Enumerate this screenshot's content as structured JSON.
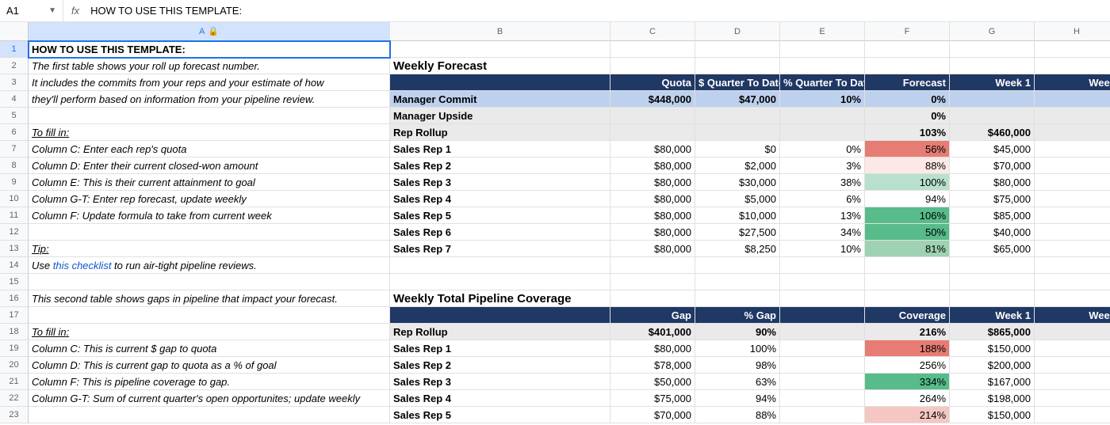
{
  "formula_bar": {
    "cell_ref": "A1",
    "content": "HOW TO USE THIS TEMPLATE:"
  },
  "columns": [
    "A",
    "B",
    "C",
    "D",
    "E",
    "F",
    "G",
    "H"
  ],
  "row_count": 23,
  "instructions": {
    "r1": "HOW TO USE THIS TEMPLATE:",
    "r2": "The first table shows your roll up forecast number.",
    "r3": "It includes the commits from your reps and your estimate of how",
    "r4": "they'll perform based on information from your pipeline review.",
    "r6": "To fill in:",
    "r7": "Column C: Enter each rep's quota",
    "r8": "Column D: Enter their current closed-won amount",
    "r9": "Column E: This is their current attainment to goal",
    "r10": "Column G-T: Enter rep forecast, update weekly",
    "r11": "Column F: Update formula to take from current week",
    "r13": "Tip:",
    "r14_a": "Use ",
    "r14_link": "this checklist",
    "r14_b": " to run air-tight pipeline reviews.",
    "r16": "This second table shows gaps in pipeline that impact your forecast.",
    "r18": "To fill in:",
    "r19": "Column C: This is current $ gap to quota",
    "r20": "Column D: This is current gap to quota as a % of goal",
    "r21": "Column F: This is pipeline coverage to gap.",
    "r22": "Column G-T: Sum of current quarter's open opportunites; update weekly"
  },
  "forecast": {
    "title": "Weekly Forecast",
    "headers": {
      "c": "Quota",
      "d": "$ Quarter To Date",
      "e": "% Quarter To Date",
      "f": "Forecast",
      "g": "Week 1",
      "h": "Week"
    },
    "rows": [
      {
        "label": "Manager Commit",
        "c": "$448,000",
        "d": "$47,000",
        "e": "10%",
        "f": "0%",
        "g": "",
        "h": "",
        "bg": "#bdd1ee",
        "fbg": ""
      },
      {
        "label": "Manager Upside",
        "c": "",
        "d": "",
        "e": "",
        "f": "0%",
        "g": "",
        "h": "",
        "bg": "#eaeaea",
        "fbg": ""
      },
      {
        "label": "Rep Rollup",
        "c": "",
        "d": "",
        "e": "",
        "f": "103%",
        "g": "$460,000",
        "h": "$",
        "bg": "#eaeaea",
        "fbg": ""
      },
      {
        "label": "Sales Rep 1",
        "c": "$80,000",
        "d": "$0",
        "e": "0%",
        "f": "56%",
        "g": "$45,000",
        "h": "",
        "bg": "",
        "fbg": "#e67c73"
      },
      {
        "label": "Sales Rep 2",
        "c": "$80,000",
        "d": "$2,000",
        "e": "3%",
        "f": "88%",
        "g": "$70,000",
        "h": "",
        "bg": "",
        "fbg": "#fce8e6"
      },
      {
        "label": "Sales Rep 3",
        "c": "$80,000",
        "d": "$30,000",
        "e": "38%",
        "f": "100%",
        "g": "$80,000",
        "h": "",
        "bg": "",
        "fbg": "#b7e1cd"
      },
      {
        "label": "Sales Rep 4",
        "c": "$80,000",
        "d": "$5,000",
        "e": "6%",
        "f": "94%",
        "g": "$75,000",
        "h": "",
        "bg": "",
        "fbg": ""
      },
      {
        "label": "Sales Rep 5",
        "c": "$80,000",
        "d": "$10,000",
        "e": "13%",
        "f": "106%",
        "g": "$85,000",
        "h": "",
        "bg": "",
        "fbg": "#57bb8a"
      },
      {
        "label": "Sales Rep 6",
        "c": "$80,000",
        "d": "$27,500",
        "e": "34%",
        "f": "50%",
        "g": "$40,000",
        "h": "",
        "bg": "",
        "fbg": "#57bb8a"
      },
      {
        "label": "Sales Rep 7",
        "c": "$80,000",
        "d": "$8,250",
        "e": "10%",
        "f": "81%",
        "g": "$65,000",
        "h": "",
        "bg": "",
        "fbg": "#9ed2b2"
      }
    ]
  },
  "pipeline": {
    "title": "Weekly Total Pipeline Coverage",
    "headers": {
      "c": "Gap",
      "d": "% Gap",
      "e": "",
      "f": "Coverage",
      "g": "Week 1",
      "h": "Week"
    },
    "rows": [
      {
        "label": "Rep Rollup",
        "c": "$401,000",
        "d": "90%",
        "e": "",
        "f": "216%",
        "g": "$865,000",
        "h": "$",
        "bg": "#eaeaea",
        "fbg": ""
      },
      {
        "label": "Sales Rep 1",
        "c": "$80,000",
        "d": "100%",
        "e": "",
        "f": "188%",
        "g": "$150,000",
        "h": "",
        "bg": "",
        "fbg": "#e67c73"
      },
      {
        "label": "Sales Rep 2",
        "c": "$78,000",
        "d": "98%",
        "e": "",
        "f": "256%",
        "g": "$200,000",
        "h": "",
        "bg": "",
        "fbg": ""
      },
      {
        "label": "Sales Rep 3",
        "c": "$50,000",
        "d": "63%",
        "e": "",
        "f": "334%",
        "g": "$167,000",
        "h": "",
        "bg": "",
        "fbg": "#57bb8a"
      },
      {
        "label": "Sales Rep 4",
        "c": "$75,000",
        "d": "94%",
        "e": "",
        "f": "264%",
        "g": "$198,000",
        "h": "",
        "bg": "",
        "fbg": ""
      },
      {
        "label": "Sales Rep 5",
        "c": "$70,000",
        "d": "88%",
        "e": "",
        "f": "214%",
        "g": "$150,000",
        "h": "",
        "bg": "",
        "fbg": "#f4c7c3"
      }
    ]
  },
  "colors": {
    "header_bg": "#1f3864",
    "shade_blue": "#bdd1ee",
    "shade_gray": "#eaeaea",
    "sel_hdr": "#d3e3fd"
  }
}
